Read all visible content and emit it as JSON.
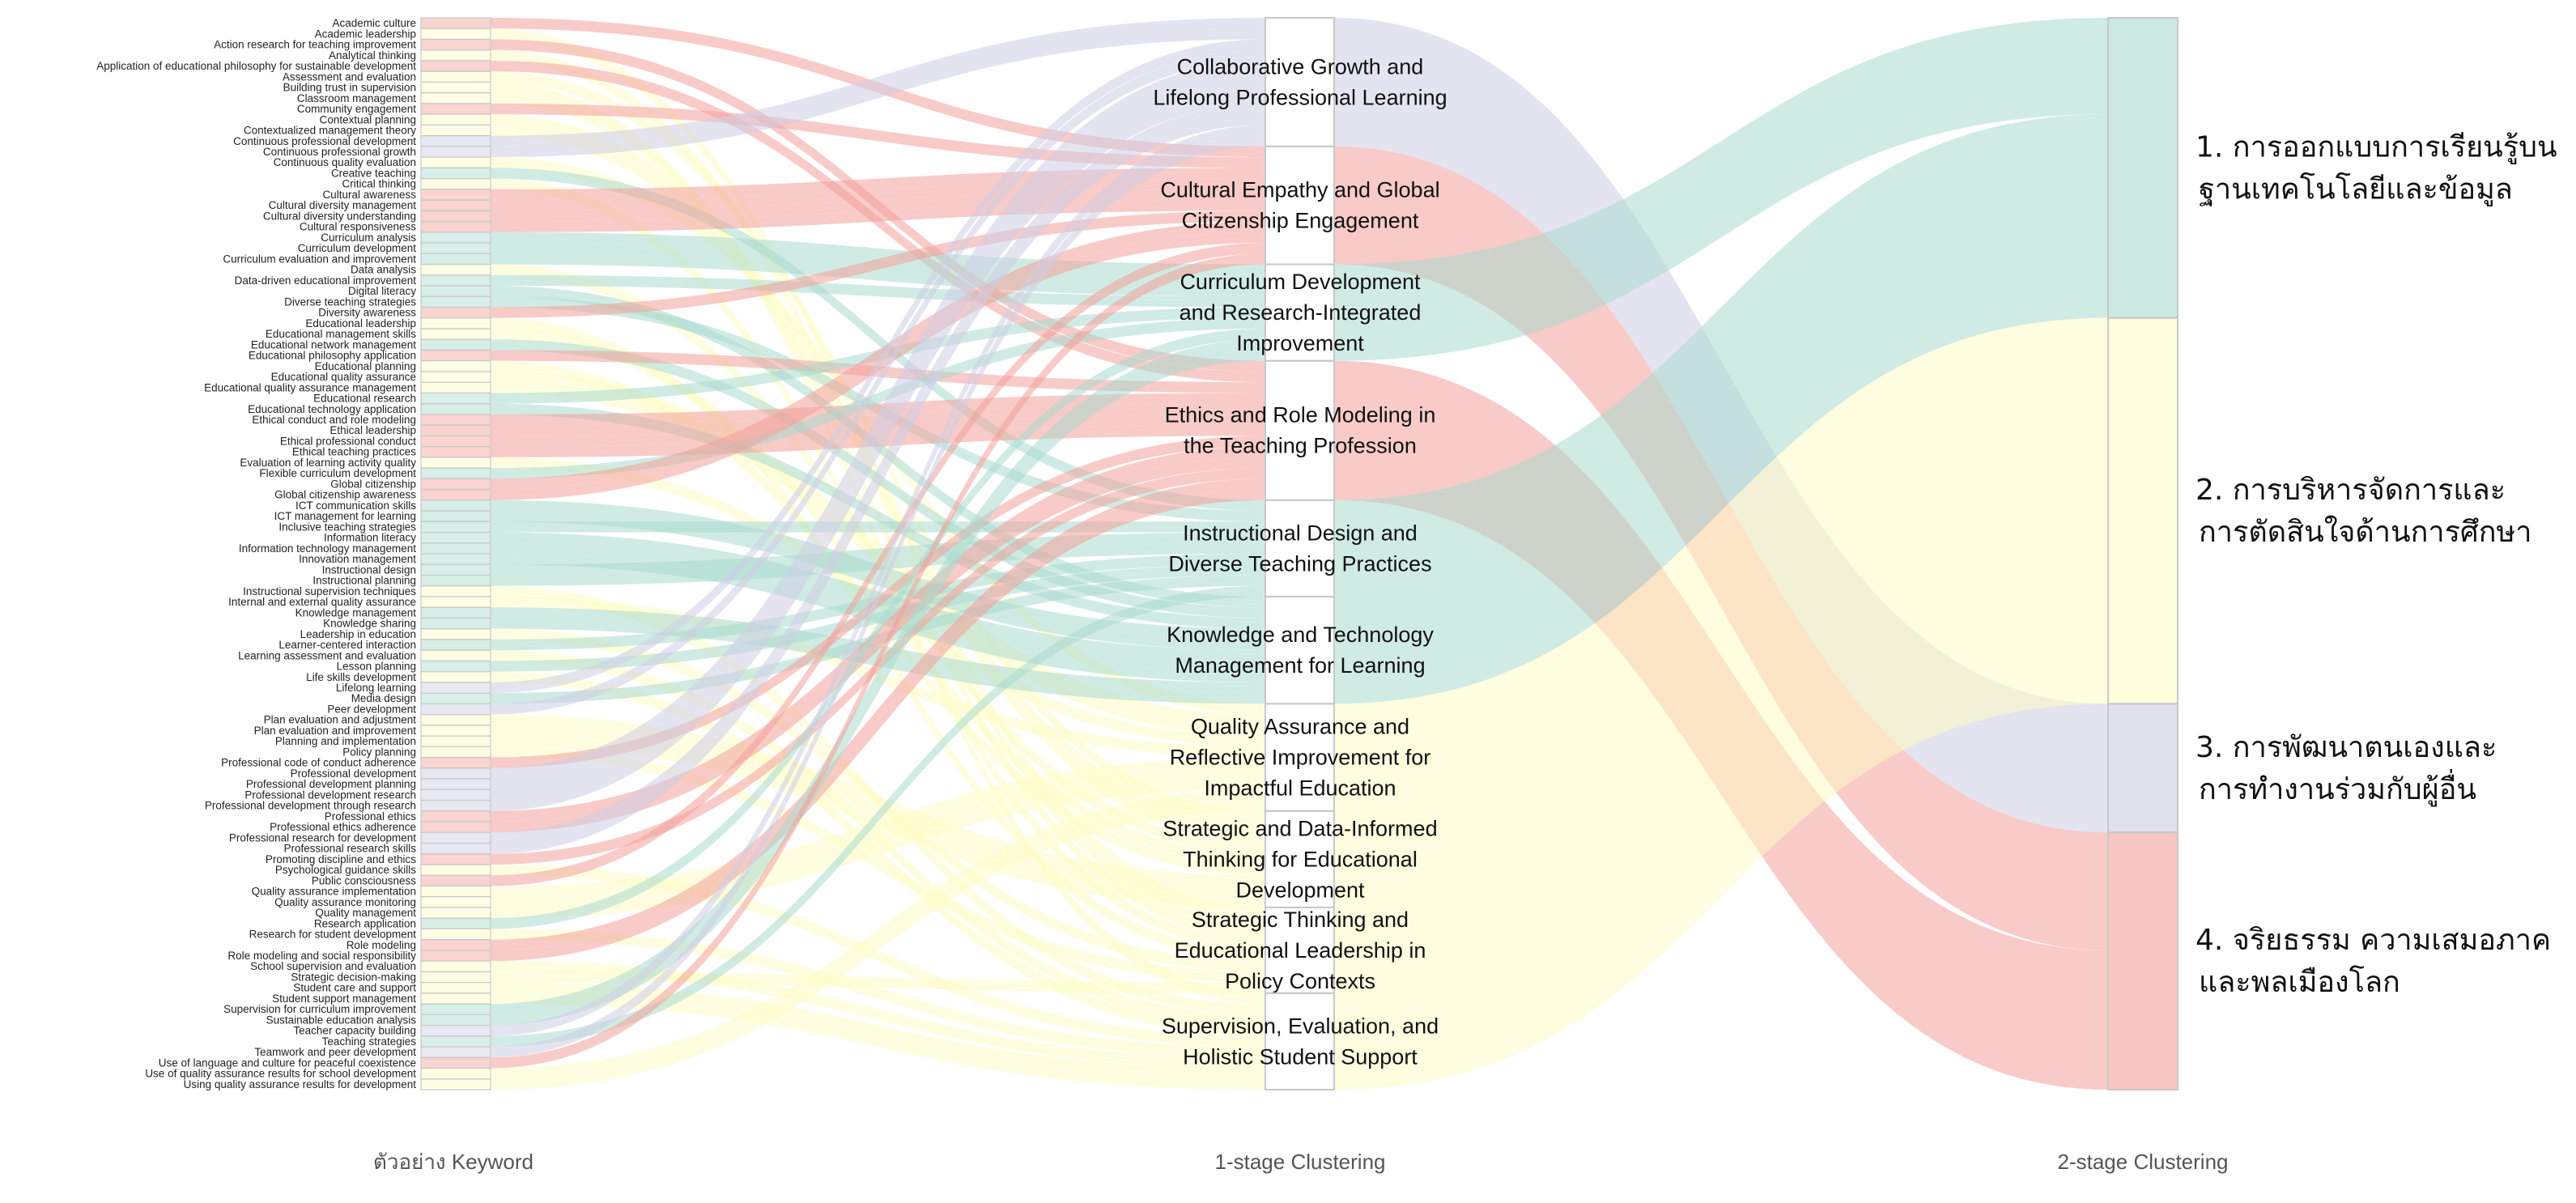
{
  "column_labels": {
    "left": "ตัวอย่าง Keyword",
    "middle": "1-stage Clustering",
    "right": "2-stage Clustering"
  },
  "colors": {
    "teal": "#a9dacd",
    "yellow": "#fefcc4",
    "lavender": "#cdcde3",
    "salmon": "#f2a09a"
  },
  "keywords": [
    "Academic culture",
    "Academic leadership",
    "Action research for teaching improvement",
    "Analytical thinking",
    "Application of educational philosophy for sustainable development",
    "Assessment and evaluation",
    "Building trust in supervision",
    "Classroom management",
    "Community engagement",
    "Contextual planning",
    "Contextualized management theory",
    "Continuous professional development",
    "Continuous professional growth",
    "Continuous quality evaluation",
    "Creative teaching",
    "Critical thinking",
    "Cultural awareness",
    "Cultural diversity management",
    "Cultural diversity understanding",
    "Cultural responsiveness",
    "Curriculum analysis",
    "Curriculum development",
    "Curriculum evaluation and improvement",
    "Data analysis",
    "Data-driven educational improvement",
    "Digital literacy",
    "Diverse teaching strategies",
    "Diversity awareness",
    "Educational leadership",
    "Educational management skills",
    "Educational network management",
    "Educational philosophy application",
    "Educational planning",
    "Educational quality assurance",
    "Educational quality assurance management",
    "Educational research",
    "Educational technology application",
    "Ethical conduct and role modeling",
    "Ethical leadership",
    "Ethical professional conduct",
    "Ethical teaching practices",
    "Evaluation of learning activity quality",
    "Flexible curriculum development",
    "Global citizenship",
    "Global citizenship awareness",
    "ICT communication skills",
    "ICT management for learning",
    "Inclusive teaching strategies",
    "Information literacy",
    "Information technology management",
    "Innovation management",
    "Instructional design",
    "Instructional planning",
    "Instructional supervision techniques",
    "Internal and external quality assurance",
    "Knowledge management",
    "Knowledge sharing",
    "Leadership in education",
    "Learner-centered interaction",
    "Learning assessment and evaluation",
    "Lesson planning",
    "Life skills development",
    "Lifelong learning",
    "Media design",
    "Peer development",
    "Plan evaluation and adjustment",
    "Plan evaluation and improvement",
    "Planning and implementation",
    "Policy planning",
    "Professional code of conduct adherence",
    "Professional development",
    "Professional development planning",
    "Professional development research",
    "Professional development through research",
    "Professional ethics",
    "Professional ethics adherence",
    "Professional research for development",
    "Professional research skills",
    "Promoting discipline and ethics",
    "Psychological guidance skills",
    "Public consciousness",
    "Quality assurance implementation",
    "Quality assurance monitoring",
    "Quality management",
    "Research application",
    "Research for student development",
    "Role modeling",
    "Role modeling and social responsibility",
    "School supervision and evaluation",
    "Strategic decision-making",
    "Student care and support",
    "Student support management",
    "Supervision for curriculum improvement",
    "Sustainable education analysis",
    "Teacher capacity building",
    "Teaching strategies",
    "Teamwork and peer development",
    "Use of language and culture for peaceful coexistence",
    "Use of quality assurance results for school development",
    "Using quality assurance results for development"
  ],
  "keyword_clusters": [
    1,
    8,
    3,
    8,
    3,
    7,
    9,
    8,
    1,
    7,
    7,
    0,
    0,
    6,
    4,
    8,
    1,
    1,
    1,
    1,
    2,
    2,
    2,
    7,
    2,
    5,
    4,
    1,
    8,
    7,
    5,
    3,
    7,
    6,
    6,
    2,
    5,
    3,
    3,
    3,
    3,
    6,
    2,
    1,
    1,
    5,
    5,
    4,
    5,
    5,
    5,
    4,
    4,
    9,
    6,
    5,
    5,
    8,
    4,
    9,
    4,
    9,
    0,
    4,
    0,
    7,
    7,
    7,
    8,
    3,
    0,
    0,
    0,
    0,
    3,
    3,
    0,
    0,
    3,
    9,
    1,
    6,
    6,
    6,
    2,
    9,
    3,
    3,
    9,
    8,
    9,
    9,
    2,
    2,
    0,
    4,
    0,
    1,
    6,
    6
  ],
  "stage1_clusters": [
    {
      "lines": [
        "Collaborative Growth and",
        "Lifelong Professional Learning"
      ],
      "group": 2
    },
    {
      "lines": [
        "Cultural Empathy and Global",
        "Citizenship Engagement"
      ],
      "group": 3
    },
    {
      "lines": [
        "Curriculum Development",
        "and Research-Integrated",
        "Improvement"
      ],
      "group": 0
    },
    {
      "lines": [
        "Ethics and Role Modeling in",
        "the Teaching Profession"
      ],
      "group": 3
    },
    {
      "lines": [
        "Instructional Design and",
        "Diverse Teaching Practices"
      ],
      "group": 0
    },
    {
      "lines": [
        "Knowledge and Technology",
        "Management for Learning"
      ],
      "group": 0
    },
    {
      "lines": [
        "Quality Assurance and",
        "Reflective Improvement for",
        "Impactful Education"
      ],
      "group": 1
    },
    {
      "lines": [
        "Strategic and Data-Informed",
        "Thinking for Educational",
        "Development"
      ],
      "group": 1
    },
    {
      "lines": [
        "Strategic Thinking and",
        "Educational Leadership in",
        "Policy Contexts"
      ],
      "group": 1
    },
    {
      "lines": [
        "Supervision, Evaluation, and",
        "Holistic Student Support"
      ],
      "group": 1
    }
  ],
  "stage2_clusters": [
    {
      "lines": [
        "1. การออกแบบการเรียนรู้บน",
        "ฐานเทคโนโลยีและข้อมูล"
      ],
      "color": "teal"
    },
    {
      "lines": [
        "2. การบริหารจัดการและ",
        "การตัดสินใจด้านการศึกษา"
      ],
      "color": "yellow"
    },
    {
      "lines": [
        "3. การพัฒนาตนเองและ",
        "การทำงานร่วมกับผู้อื่น"
      ],
      "color": "lavender"
    },
    {
      "lines": [
        "4. จริยธรรม ความเสมอภาค",
        "และพลเมืองโลก"
      ],
      "color": "salmon"
    }
  ]
}
